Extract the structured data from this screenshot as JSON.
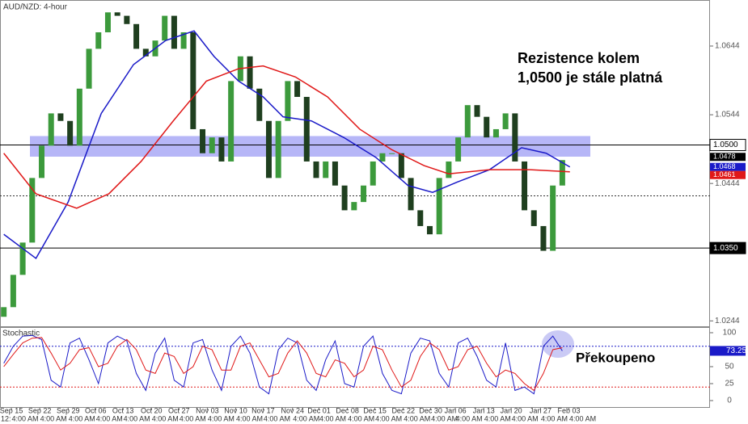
{
  "chart_data": {
    "type": "candlestick",
    "title": "AUD/NZD: 4-hour",
    "annotation": "Rezistence kolem 1,0500 je stále platná",
    "up_color": "#3c9a3c",
    "down_color": "#1f3f1f",
    "open": [
      1.025,
      1.0264,
      1.0311,
      1.0358,
      1.0452,
      1.0499,
      1.0546,
      1.0535,
      1.0499,
      1.0582,
      1.064,
      1.0664,
      1.0693,
      1.0688,
      1.0676,
      1.064,
      1.0629,
      1.0652,
      1.0688,
      1.064,
      1.0664,
      1.0523,
      1.0488,
      1.0511,
      1.0476,
      1.0593,
      1.0629,
      1.0582,
      1.0535,
      1.0452,
      1.0535,
      1.0593,
      1.057,
      1.0476,
      1.0452,
      1.0476,
      1.0441,
      1.0405,
      1.0417,
      1.0441,
      1.0476,
      1.0488,
      1.0488,
      1.0452,
      1.0405,
      1.0382,
      1.037,
      1.0452,
      1.0476,
      1.0511,
      1.0558,
      1.0541,
      1.0511,
      1.0523,
      1.0546,
      1.0476,
      1.0405,
      1.0382,
      1.0346,
      1.0441
    ],
    "close": [
      1.0264,
      1.0311,
      1.0358,
      1.0452,
      1.0499,
      1.0546,
      1.0535,
      1.0499,
      1.0582,
      1.064,
      1.0664,
      1.0693,
      1.0688,
      1.0676,
      1.064,
      1.0629,
      1.0652,
      1.0688,
      1.064,
      1.0664,
      1.0523,
      1.0488,
      1.0511,
      1.0476,
      1.0593,
      1.0629,
      1.0582,
      1.0535,
      1.0452,
      1.0535,
      1.0593,
      1.057,
      1.0476,
      1.0452,
      1.0476,
      1.0441,
      1.0405,
      1.0417,
      1.0441,
      1.0476,
      1.0488,
      1.0488,
      1.0452,
      1.0405,
      1.0382,
      1.037,
      1.0452,
      1.0476,
      1.0511,
      1.0558,
      1.0541,
      1.0511,
      1.0523,
      1.0546,
      1.0476,
      1.0405,
      1.0382,
      1.0346,
      1.0441,
      1.0478
    ],
    "lines": [
      {
        "color": "#1a1ac8",
        "x": [
          0,
          3.4,
          6.8,
          10.3,
          13.7,
          17.1,
          20.1,
          22.2,
          24.8,
          27.4,
          29.5,
          32.5,
          35.9,
          39.3,
          42.7,
          45.3,
          47.9,
          51.3,
          54.7,
          57.3,
          59.8
        ],
        "values": [
          1.037,
          1.0335,
          1.0417,
          1.0546,
          1.0617,
          1.0652,
          1.0666,
          1.0629,
          1.0593,
          1.057,
          1.0541,
          1.0535,
          1.0511,
          1.0482,
          1.0441,
          1.0431,
          1.0446,
          1.0464,
          1.0496,
          1.0488,
          1.0468
        ]
      },
      {
        "color": "#e01818",
        "x": [
          0,
          3.4,
          7.7,
          11.1,
          14.5,
          17.9,
          21.4,
          24.8,
          27.4,
          30.8,
          34.2,
          37.6,
          41.0,
          44.4,
          47.0,
          51.3,
          55.6,
          59.8
        ],
        "values": [
          1.0488,
          1.0429,
          1.0408,
          1.0429,
          1.0476,
          1.0535,
          1.0593,
          1.0611,
          1.0615,
          1.0599,
          1.057,
          1.0523,
          1.0493,
          1.047,
          1.0458,
          1.0464,
          1.0464,
          1.0461
        ]
      }
    ],
    "xlim": [
      -0.4,
      74.6
    ],
    "ylim": [
      1.0235,
      1.0711
    ],
    "yticks": [
      1.0244,
      1.0444,
      1.0544,
      1.0644
    ],
    "xticks": [
      {
        "value": 0.8,
        "label": "Sep 15"
      },
      {
        "value": 3.8,
        "label": "Sep 22"
      },
      {
        "value": 6.8,
        "label": "Sep 29"
      },
      {
        "value": 9.7,
        "label": "Oct 06"
      },
      {
        "value": 12.6,
        "label": "Oct 13"
      },
      {
        "value": 15.6,
        "label": "Oct 20"
      },
      {
        "value": 18.5,
        "label": "Oct 27"
      },
      {
        "value": 21.5,
        "label": "Nov 03"
      },
      {
        "value": 24.5,
        "label": "Nov 10"
      },
      {
        "value": 27.4,
        "label": "Nov 17"
      },
      {
        "value": 30.5,
        "label": "Nov 24"
      },
      {
        "value": 33.3,
        "label": "Dec 01"
      },
      {
        "value": 36.3,
        "label": "Dec 08"
      },
      {
        "value": 39.2,
        "label": "Dec 15"
      },
      {
        "value": 42.2,
        "label": "Dec 22"
      },
      {
        "value": 45.1,
        "label": "Dec 30"
      },
      {
        "value": 47.7,
        "label": "Jan 06"
      },
      {
        "value": 50.7,
        "label": "Jan 13"
      },
      {
        "value": 53.6,
        "label": "Jan 20"
      },
      {
        "value": 56.7,
        "label": "Jan 27"
      },
      {
        "value": 59.7,
        "label": "Feb 03"
      }
    ],
    "time_prefix": "12:",
    "time_label": "4:00 AM",
    "zone": [
      1.0483,
      1.0513
    ],
    "levels": [
      {
        "value": 1.05,
        "label": "1.0500"
      },
      {
        "value": 1.035,
        "label": "1.0350"
      }
    ],
    "dashed_level": 1.0426,
    "price_tags": [
      {
        "value": 1.0478,
        "label": "1.0478",
        "color": "#000000"
      },
      {
        "value": 1.0468,
        "label": "1.0468",
        "color": "#1a1ac8"
      },
      {
        "value": 1.0461,
        "label": "1.0461",
        "color": "#e01818"
      }
    ],
    "stochastic": {
      "title": "Stochastic",
      "note": "Překoupeno",
      "ylim": [
        -10.7,
        108.3
      ],
      "yticks": [
        0,
        25,
        50,
        75,
        100
      ],
      "bands": [
        20,
        80
      ],
      "series": [
        {
          "color": "#1a1ac8",
          "values": [
            55,
            80,
            95,
            96,
            90,
            30,
            20,
            85,
            92,
            60,
            25,
            85,
            95,
            88,
            40,
            15,
            70,
            92,
            30,
            20,
            85,
            90,
            45,
            15,
            80,
            95,
            70,
            20,
            10,
            75,
            92,
            85,
            30,
            15,
            60,
            88,
            25,
            20,
            80,
            95,
            40,
            15,
            10,
            70,
            92,
            88,
            40,
            20,
            85,
            92,
            65,
            30,
            20,
            85,
            15,
            20,
            10,
            80,
            95,
            73.25
          ]
        },
        {
          "color": "#e01818",
          "values": [
            50,
            68,
            85,
            92,
            93,
            70,
            45,
            55,
            75,
            78,
            50,
            55,
            80,
            90,
            75,
            45,
            40,
            70,
            65,
            40,
            50,
            80,
            75,
            45,
            45,
            80,
            85,
            60,
            35,
            40,
            70,
            88,
            70,
            40,
            35,
            60,
            55,
            35,
            45,
            80,
            75,
            45,
            20,
            30,
            65,
            85,
            75,
            45,
            50,
            75,
            80,
            55,
            35,
            45,
            40,
            25,
            15,
            40,
            75,
            78
          ]
        }
      ],
      "tag": {
        "value": 73.25,
        "label": "73.25"
      }
    }
  }
}
